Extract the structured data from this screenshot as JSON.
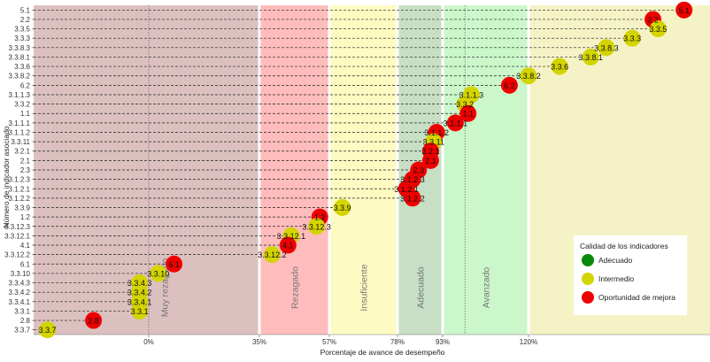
{
  "chart_data": {
    "type": "scatter",
    "xlabel": "Porcentaje de avance de desempeño",
    "ylabel": "Número de indicador asociado",
    "xlim": [
      -0.25,
      1.55
    ],
    "x_ticks": [
      {
        "value": 0,
        "label": "0%"
      },
      {
        "value": 0.35,
        "label": "35%"
      },
      {
        "value": 0.57,
        "label": "57%"
      },
      {
        "value": 0.78,
        "label": "78%"
      },
      {
        "value": 0.93,
        "label": "93%"
      },
      {
        "value": 1.2,
        "label": "120%"
      }
    ],
    "zones": [
      {
        "label": "Muy rezagado",
        "from": -0.25,
        "to": 0.35,
        "color": "#dcc0c0"
      },
      {
        "label": "Rezagado",
        "from": 0.35,
        "to": 0.57,
        "color": "#ffbcbc"
      },
      {
        "label": "Insuficiente",
        "from": 0.57,
        "to": 0.78,
        "color": "#fdfbc2"
      },
      {
        "label": "Adecuado",
        "from": 0.78,
        "to": 0.93,
        "color": "#c7dfc4"
      },
      {
        "label": "Avanzado",
        "from": 0.93,
        "to": 1.2,
        "color": "#cbf7cb"
      },
      {
        "label": "",
        "from": 1.2,
        "to": 1.55,
        "color": "#f5f3c6"
      }
    ],
    "legend": {
      "title": "Calidad de los indicadores",
      "placement": "right",
      "items": [
        {
          "label": "Adecuado",
          "color": "#0a8a0a"
        },
        {
          "label": "Intermedio",
          "color": "#d4d400"
        },
        {
          "label": "Oportunidad de mejora",
          "color": "#ee0000"
        }
      ]
    },
    "points": [
      {
        "id": "5.1",
        "x": 1.5,
        "quality": "Oportunidad de mejora"
      },
      {
        "id": "2.2",
        "x": 1.44,
        "quality": "Oportunidad de mejora"
      },
      {
        "id": "3.3.5",
        "x": 1.45,
        "quality": "Intermedio"
      },
      {
        "id": "3.3.3",
        "x": 1.4,
        "quality": "Intermedio"
      },
      {
        "id": "3.3.8.3",
        "x": 1.35,
        "quality": "Intermedio"
      },
      {
        "id": "3.3.8.1",
        "x": 1.32,
        "quality": "Intermedio"
      },
      {
        "id": "3.3.6",
        "x": 1.26,
        "quality": "Intermedio"
      },
      {
        "id": "3.3.8.2",
        "x": 1.2,
        "quality": "Intermedio"
      },
      {
        "id": "6.2",
        "x": 1.14,
        "quality": "Oportunidad de mejora"
      },
      {
        "id": "3.1.1.3",
        "x": 1.02,
        "quality": "Intermedio"
      },
      {
        "id": "3.3.2",
        "x": 1.0,
        "quality": "Intermedio"
      },
      {
        "id": "1.1",
        "x": 1.01,
        "quality": "Oportunidad de mejora"
      },
      {
        "id": "3.1.1.1",
        "x": 0.97,
        "quality": "Oportunidad de mejora"
      },
      {
        "id": "3.1.1.2",
        "x": 0.91,
        "quality": "Oportunidad de mejora"
      },
      {
        "id": "3.3.11",
        "x": 0.9,
        "quality": "Intermedio"
      },
      {
        "id": "3.2.1",
        "x": 0.89,
        "quality": "Oportunidad de mejora"
      },
      {
        "id": "2.1",
        "x": 0.89,
        "quality": "Oportunidad de mejora"
      },
      {
        "id": "2.3",
        "x": 0.85,
        "quality": "Oportunidad de mejora"
      },
      {
        "id": "3.1.2.3",
        "x": 0.83,
        "quality": "Oportunidad de mejora"
      },
      {
        "id": "3.1.2.1",
        "x": 0.81,
        "quality": "Oportunidad de mejora"
      },
      {
        "id": "3.1.2.2",
        "x": 0.83,
        "quality": "Oportunidad de mejora"
      },
      {
        "id": "3.3.9",
        "x": 0.61,
        "quality": "Intermedio"
      },
      {
        "id": "1.2",
        "x": 0.54,
        "quality": "Oportunidad de mejora"
      },
      {
        "id": "3.3.12.3",
        "x": 0.53,
        "quality": "Intermedio"
      },
      {
        "id": "3.3.12.1",
        "x": 0.45,
        "quality": "Intermedio"
      },
      {
        "id": "4.1",
        "x": 0.44,
        "quality": "Oportunidad de mejora"
      },
      {
        "id": "3.3.12.2",
        "x": 0.39,
        "quality": "Intermedio"
      },
      {
        "id": "6.1",
        "x": 0.08,
        "quality": "Oportunidad de mejora"
      },
      {
        "id": "3.3.10",
        "x": 0.03,
        "quality": "Intermedio"
      },
      {
        "id": "3.3.4.3",
        "x": -0.02,
        "quality": "Intermedio"
      },
      {
        "id": "3.3.4.2",
        "x": -0.02,
        "quality": "Intermedio"
      },
      {
        "id": "3.3.4.1",
        "x": -0.02,
        "quality": "Intermedio"
      },
      {
        "id": "3.3.1",
        "x": -0.02,
        "quality": "Intermedio"
      },
      {
        "id": "2.8",
        "x": -0.12,
        "quality": "Oportunidad de mejora"
      },
      {
        "id": "3.3.7",
        "x": -0.22,
        "quality": "Intermedio"
      }
    ]
  }
}
